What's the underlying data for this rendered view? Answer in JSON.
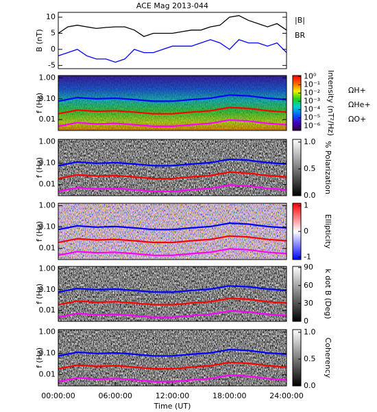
{
  "chart_data": [
    {
      "type": "line",
      "title": "ACE Mag 2013-044",
      "ylabel": "B (nT)",
      "x": [
        0,
        1,
        2,
        3,
        4,
        5,
        6,
        7,
        8,
        9,
        10,
        11,
        12,
        13,
        14,
        15,
        16,
        17,
        18,
        19,
        20,
        21,
        22,
        23,
        24
      ],
      "xlim": [
        0,
        24
      ],
      "ylim": [
        -6,
        11.5
      ],
      "yticks": [
        -5,
        0,
        5,
        10
      ],
      "series": [
        {
          "name": "|B|",
          "color": "#000000",
          "values": [
            5,
            7,
            7.5,
            7,
            6.5,
            6.8,
            7,
            7,
            6,
            4,
            5,
            5,
            5,
            5.5,
            6,
            6,
            7,
            7.5,
            10,
            10.5,
            9,
            8,
            7,
            8,
            6
          ]
        },
        {
          "name": "BR",
          "color": "#0000ff",
          "values": [
            -2,
            -1,
            0,
            -2,
            -3,
            -3,
            -4,
            -3,
            0,
            -1,
            -1,
            0,
            1,
            1,
            1,
            2,
            3,
            2,
            0,
            3,
            2,
            2,
            1,
            2,
            -1
          ]
        }
      ]
    },
    {
      "type": "spectrogram",
      "ylabel": "f (Hz)",
      "log": true,
      "x": [
        0,
        2,
        4,
        6,
        8,
        10,
        12,
        14,
        16,
        18,
        20,
        22,
        24
      ],
      "xlim": [
        0,
        24
      ],
      "ylim": [
        0.003,
        1.3
      ],
      "yticks": [
        {
          "value": 1,
          "label": "1.00"
        },
        {
          "value": 0.1,
          "label": "0.10"
        },
        0.01
      ],
      "colorbar": {
        "label": "Intensity (nT²/Hz)",
        "log": true,
        "lim": [
          3e-07,
          1.3
        ],
        "colors": [
          "#300040",
          "#4000c0",
          "#0060ff",
          "#00d0d0",
          "#20d020",
          "#f0f000",
          "#ff6000",
          "#ff0000"
        ],
        "ticks": [
          {
            "value": 1,
            "label": "10⁰"
          },
          {
            "value": 0.1,
            "label": "10⁻¹"
          },
          {
            "value": 0.01,
            "label": "10⁻²"
          },
          {
            "value": 0.001,
            "label": "10⁻³"
          },
          {
            "value": 0.0001,
            "label": "10⁻⁴"
          },
          {
            "value": 1e-05,
            "label": "10⁻⁵"
          },
          {
            "value": 1e-06,
            "label": "10⁻⁶"
          }
        ]
      },
      "series": [
        {
          "name": "ΩH+",
          "color": "#0000ff",
          "values": [
            0.076,
            0.114,
            0.099,
            0.106,
            0.091,
            0.076,
            0.076,
            0.091,
            0.106,
            0.152,
            0.137,
            0.106,
            0.091
          ]
        },
        {
          "name": "ΩHe+",
          "color": "#ff0000",
          "values": [
            0.019,
            0.0285,
            0.0248,
            0.0265,
            0.0228,
            0.019,
            0.019,
            0.0228,
            0.0265,
            0.038,
            0.0343,
            0.0265,
            0.0228
          ]
        },
        {
          "name": "ΩO+",
          "color": "#ff00ff",
          "values": [
            0.00475,
            0.00713,
            0.00619,
            0.00663,
            0.00569,
            0.00475,
            0.00475,
            0.00569,
            0.00663,
            0.0095,
            0.00856,
            0.00663,
            0.00569
          ]
        }
      ]
    },
    {
      "type": "spectrogram",
      "ylabel": "f (Hz)",
      "log": true,
      "x": [
        0,
        2,
        4,
        6,
        8,
        10,
        12,
        14,
        16,
        18,
        20,
        22,
        24
      ],
      "xlim": [
        0,
        24
      ],
      "ylim": [
        0.003,
        1.3
      ],
      "yticks": [
        {
          "value": 1,
          "label": "1.00"
        },
        {
          "value": 0.1,
          "label": "0.10"
        },
        0.01
      ],
      "colorbar": {
        "label": "% Polarization",
        "lim": [
          0,
          1.05
        ],
        "colors": [
          "#000000",
          "#ffffff"
        ],
        "ticks": [
          {
            "value": 0,
            "label": "0.0"
          },
          0.5,
          {
            "value": 1,
            "label": "1.0"
          }
        ]
      },
      "series": [
        {
          "color": "#0000ff",
          "values": [
            0.076,
            0.114,
            0.099,
            0.106,
            0.091,
            0.076,
            0.076,
            0.091,
            0.106,
            0.152,
            0.137,
            0.106,
            0.091
          ]
        },
        {
          "color": "#ff0000",
          "values": [
            0.019,
            0.0285,
            0.0248,
            0.0265,
            0.0228,
            0.019,
            0.019,
            0.0228,
            0.0265,
            0.038,
            0.0343,
            0.0265,
            0.0228
          ]
        },
        {
          "color": "#ff00ff",
          "values": [
            0.00475,
            0.00713,
            0.00619,
            0.00663,
            0.00569,
            0.00475,
            0.00475,
            0.00569,
            0.00663,
            0.0095,
            0.00856,
            0.00663,
            0.00569
          ]
        }
      ]
    },
    {
      "type": "spectrogram",
      "ylabel": "f (Hz)",
      "log": true,
      "x": [
        0,
        2,
        4,
        6,
        8,
        10,
        12,
        14,
        16,
        18,
        20,
        22,
        24
      ],
      "xlim": [
        0,
        24
      ],
      "ylim": [
        0.003,
        1.3
      ],
      "yticks": [
        {
          "value": 1,
          "label": "1.00"
        },
        {
          "value": 0.1,
          "label": "0.10"
        },
        0.01
      ],
      "colorbar": {
        "label": "Ellipticity",
        "lim": [
          -1.1,
          1.1
        ],
        "colors": [
          "#0000ff",
          "#ffffff",
          "#ff0000"
        ],
        "ticks": [
          1,
          0,
          -1
        ]
      },
      "series": [
        {
          "color": "#0000ff",
          "values": [
            0.076,
            0.114,
            0.099,
            0.106,
            0.091,
            0.076,
            0.076,
            0.091,
            0.106,
            0.152,
            0.137,
            0.106,
            0.091
          ]
        },
        {
          "color": "#ff0000",
          "values": [
            0.019,
            0.0285,
            0.0248,
            0.0265,
            0.0228,
            0.019,
            0.019,
            0.0228,
            0.0265,
            0.038,
            0.0343,
            0.0265,
            0.0228
          ]
        },
        {
          "color": "#ff00ff",
          "values": [
            0.00475,
            0.00713,
            0.00619,
            0.00663,
            0.00569,
            0.00475,
            0.00475,
            0.00569,
            0.00663,
            0.0095,
            0.00856,
            0.00663,
            0.00569
          ]
        }
      ]
    },
    {
      "type": "spectrogram",
      "ylabel": "f (Hz)",
      "log": true,
      "x": [
        0,
        2,
        4,
        6,
        8,
        10,
        12,
        14,
        16,
        18,
        20,
        22,
        24
      ],
      "xlim": [
        0,
        24
      ],
      "ylim": [
        0.003,
        1.3
      ],
      "yticks": [
        {
          "value": 1,
          "label": "1.00"
        },
        {
          "value": 0.1,
          "label": "0.10"
        },
        0.01
      ],
      "colorbar": {
        "label": "k dot B (Deg)",
        "lim": [
          0,
          92
        ],
        "colors": [
          "#000000",
          "#ffffff"
        ],
        "ticks": [
          90,
          60,
          30,
          0
        ]
      },
      "series": [
        {
          "color": "#0000ff",
          "values": [
            0.076,
            0.114,
            0.099,
            0.106,
            0.091,
            0.076,
            0.076,
            0.091,
            0.106,
            0.152,
            0.137,
            0.106,
            0.091
          ]
        },
        {
          "color": "#ff0000",
          "values": [
            0.019,
            0.0285,
            0.0248,
            0.0265,
            0.0228,
            0.019,
            0.019,
            0.0228,
            0.0265,
            0.038,
            0.0343,
            0.0265,
            0.0228
          ]
        },
        {
          "color": "#ff00ff",
          "values": [
            0.00475,
            0.00713,
            0.00619,
            0.00663,
            0.00569,
            0.00475,
            0.00475,
            0.00569,
            0.00663,
            0.0095,
            0.00856,
            0.00663,
            0.00569
          ]
        }
      ]
    },
    {
      "type": "spectrogram",
      "ylabel": "f (Hz)",
      "log": true,
      "xlabel": "Time (UT)",
      "x": [
        0,
        2,
        4,
        6,
        8,
        10,
        12,
        14,
        16,
        18,
        20,
        22,
        24
      ],
      "xlim": [
        0,
        24
      ],
      "ylim": [
        0.003,
        1.3
      ],
      "xticks": [
        {
          "value": 0,
          "label": "00:00:00"
        },
        {
          "value": 6,
          "label": "06:00:00"
        },
        {
          "value": 12,
          "label": "12:00:00"
        },
        {
          "value": 18,
          "label": "18:00:00"
        },
        {
          "value": 24,
          "label": "24:00:00"
        }
      ],
      "yticks": [
        {
          "value": 1,
          "label": "1.00"
        },
        {
          "value": 0.1,
          "label": "0.10"
        },
        0.01
      ],
      "colorbar": {
        "label": "Coherency",
        "lim": [
          0,
          1.05
        ],
        "colors": [
          "#000000",
          "#ffffff"
        ],
        "ticks": [
          {
            "value": 1,
            "label": "1.0"
          },
          0.5,
          {
            "value": 0,
            "label": "0.0"
          }
        ]
      },
      "series": [
        {
          "color": "#0000ff",
          "values": [
            0.076,
            0.114,
            0.099,
            0.106,
            0.091,
            0.076,
            0.076,
            0.091,
            0.106,
            0.152,
            0.137,
            0.106,
            0.091
          ]
        },
        {
          "color": "#ff0000",
          "values": [
            0.019,
            0.0285,
            0.0248,
            0.0265,
            0.0228,
            0.019,
            0.019,
            0.0228,
            0.0265,
            0.038,
            0.0343,
            0.0265,
            0.0228
          ]
        },
        {
          "color": "#ff00ff",
          "values": [
            0.00475,
            0.00713,
            0.00619,
            0.00663,
            0.00569,
            0.00475,
            0.00475,
            0.00569,
            0.00663,
            0.0095,
            0.00856,
            0.00663,
            0.00569
          ]
        }
      ]
    }
  ]
}
